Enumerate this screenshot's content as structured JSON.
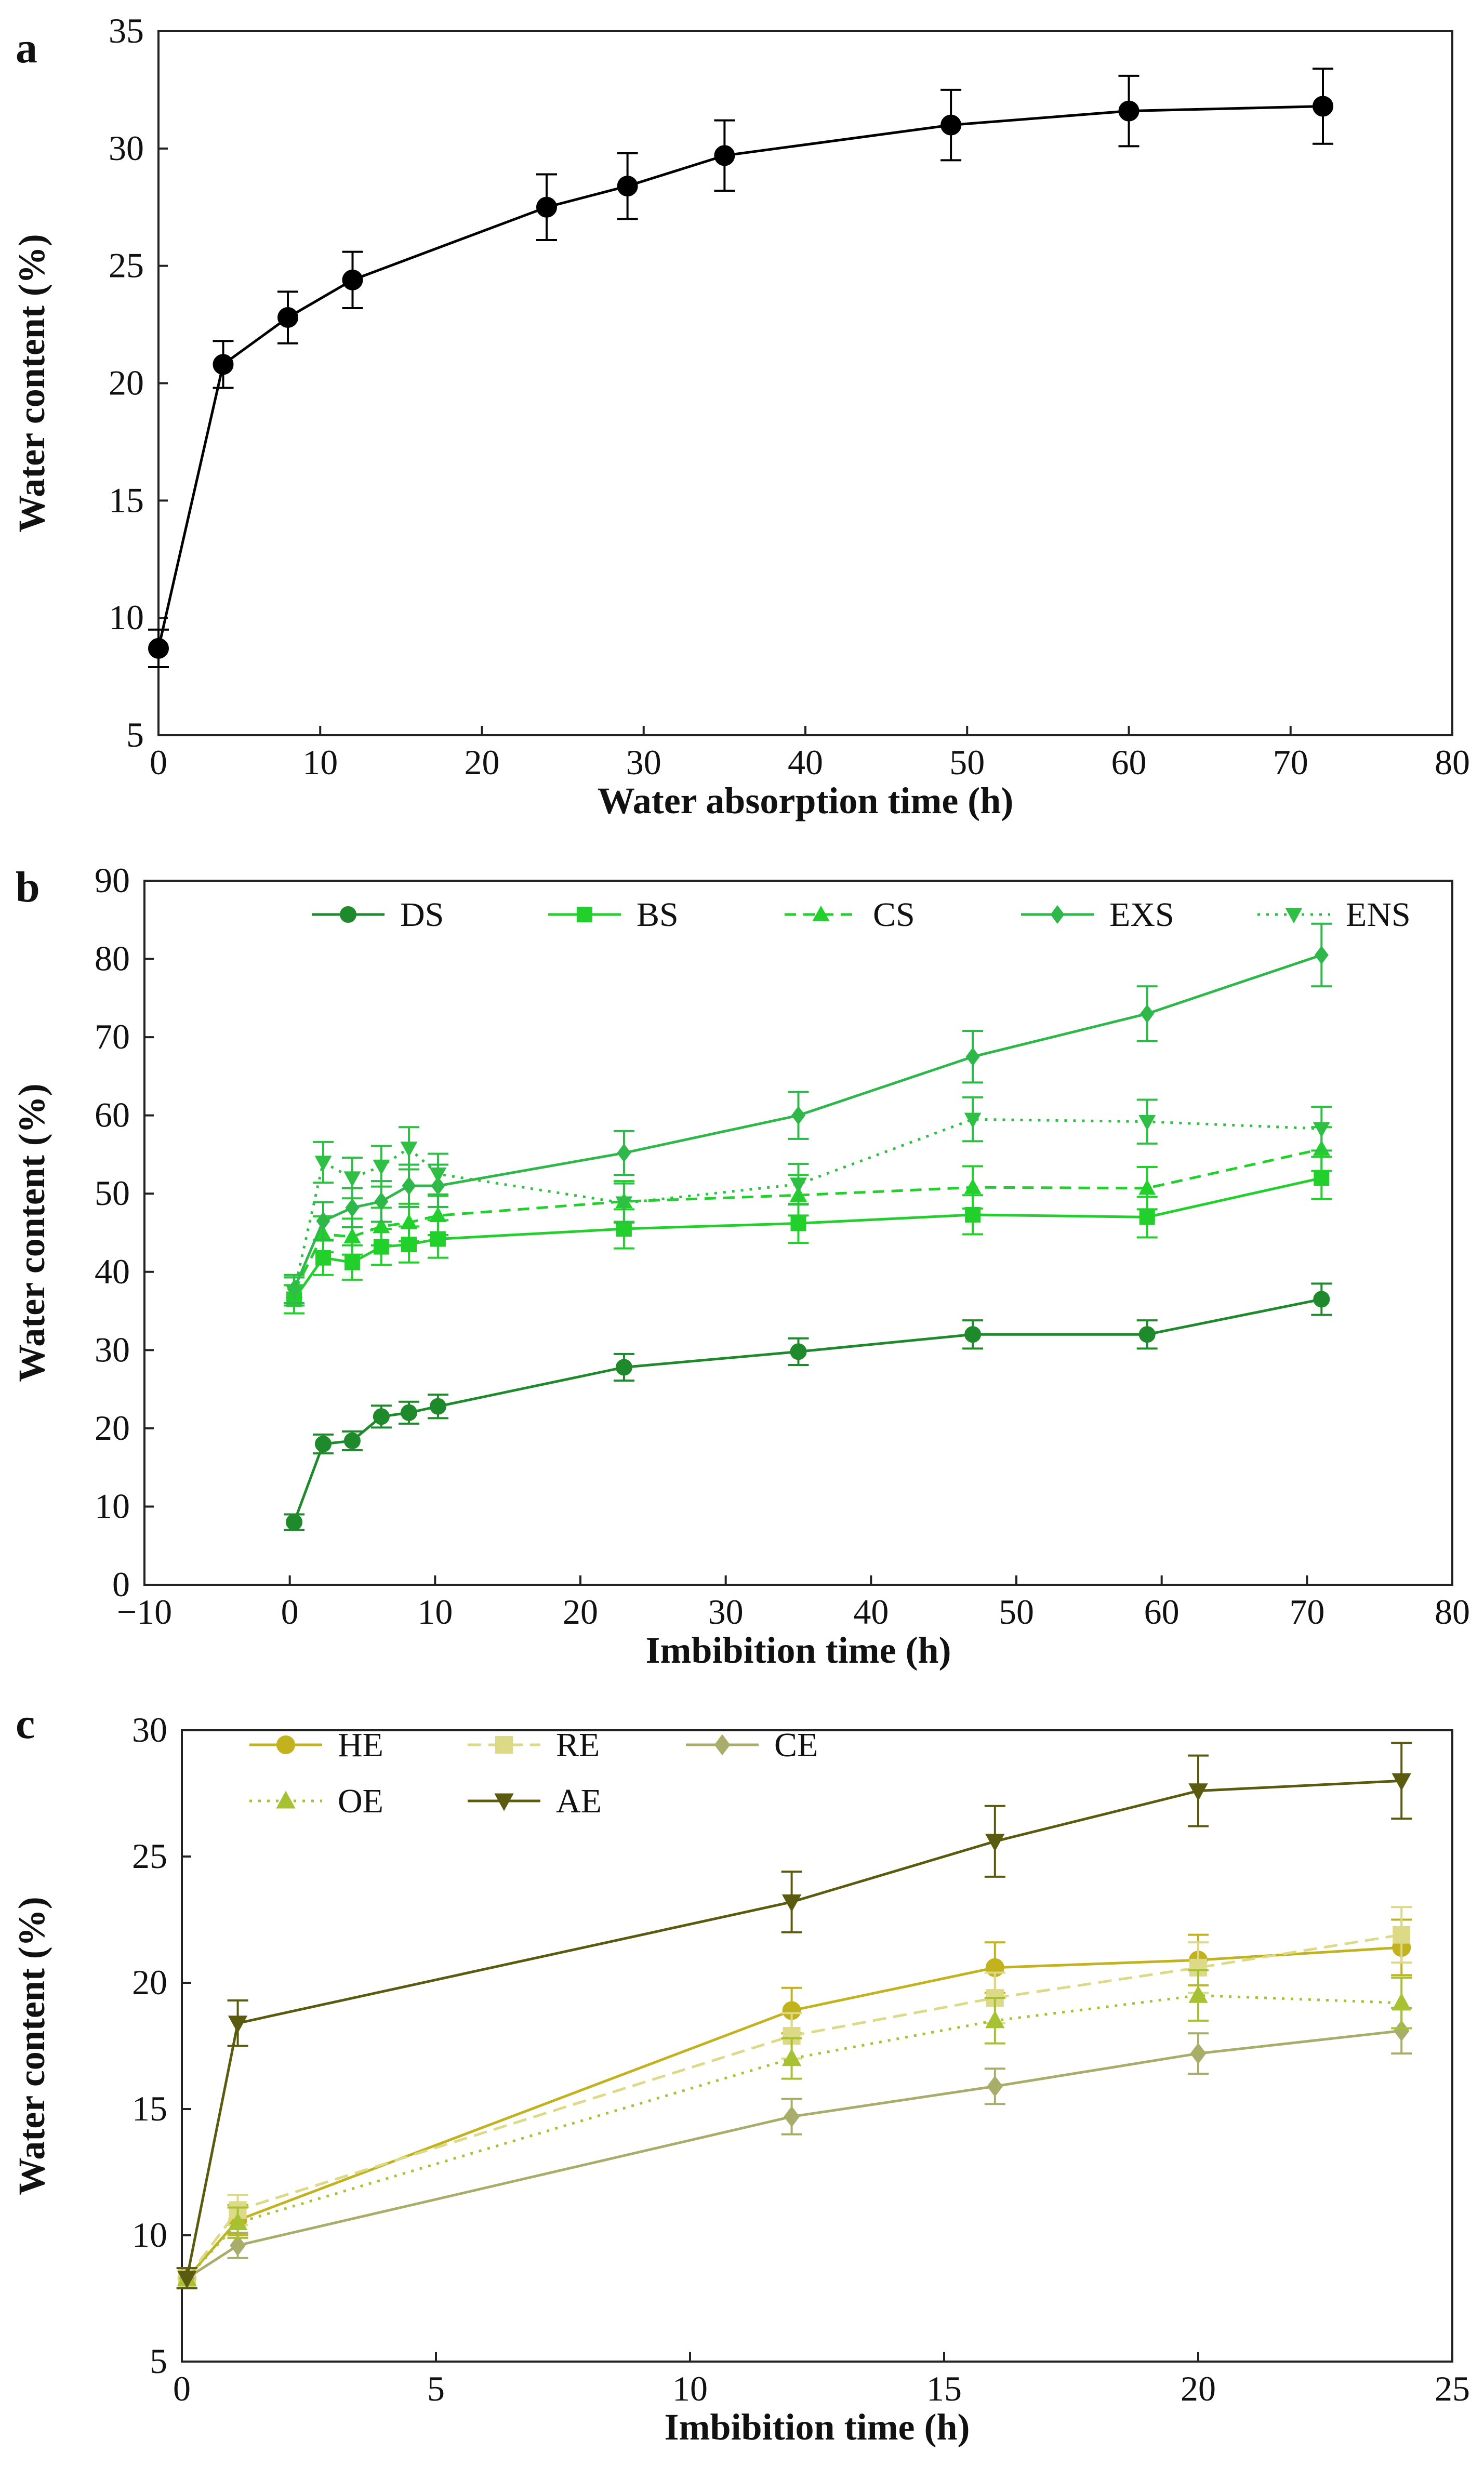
{
  "chart_data": [
    {
      "panel_label": "a",
      "type": "line",
      "xlabel": "Water absorption time (h)",
      "ylabel": "Water content (%)",
      "xlim": [
        0,
        80
      ],
      "ylim": [
        5,
        35
      ],
      "xticks": [
        0,
        10,
        20,
        30,
        40,
        50,
        60,
        70,
        80
      ],
      "yticks": [
        5,
        10,
        15,
        20,
        25,
        30,
        35
      ],
      "legend": null,
      "series": [
        {
          "name": "Water content",
          "color": "#000000",
          "marker": "circle",
          "dash": "",
          "x": [
            0,
            4,
            8,
            12,
            24,
            29,
            35,
            49,
            60,
            72
          ],
          "y": [
            8.7,
            20.8,
            22.8,
            24.4,
            27.5,
            28.4,
            29.7,
            31.0,
            31.6,
            31.8
          ],
          "err": [
            0.8,
            1.0,
            1.1,
            1.2,
            1.4,
            1.4,
            1.5,
            1.5,
            1.5,
            1.6
          ]
        }
      ]
    },
    {
      "panel_label": "b",
      "type": "line",
      "xlabel": "Imbibition time (h)",
      "ylabel": "Water content (%)",
      "xlim": [
        -10,
        80
      ],
      "ylim": [
        0,
        90
      ],
      "xticks": [
        -10,
        0,
        10,
        20,
        30,
        40,
        50,
        60,
        70,
        80
      ],
      "xticklabels": [
        "−10",
        "0",
        "10",
        "20",
        "30",
        "40",
        "50",
        "60",
        "70",
        "80"
      ],
      "yticks": [
        0,
        10,
        20,
        30,
        40,
        50,
        60,
        70,
        80,
        90
      ],
      "legend": "top",
      "series": [
        {
          "name": "DS",
          "color": "#1e8a2c",
          "marker": "circle",
          "dash": "",
          "x": [
            0.3,
            2.3,
            4.3,
            6.3,
            8.2,
            10.2,
            23,
            35,
            47,
            59,
            71
          ],
          "y": [
            8,
            18,
            18.4,
            21.5,
            22,
            22.8,
            27.8,
            29.8,
            32,
            32,
            36.5
          ],
          "err": [
            1.0,
            1.2,
            1.2,
            1.4,
            1.4,
            1.5,
            1.7,
            1.7,
            1.8,
            1.8,
            2.0
          ]
        },
        {
          "name": "BS",
          "color": "#22d02b",
          "marker": "square",
          "dash": "",
          "x": [
            0.3,
            2.3,
            4.3,
            6.3,
            8.2,
            10.2,
            23,
            35,
            47,
            59,
            71
          ],
          "y": [
            36.5,
            41.8,
            41.2,
            43.2,
            43.5,
            44.2,
            45.5,
            46.2,
            47.3,
            47,
            52
          ],
          "err": [
            1.8,
            2.2,
            2.2,
            2.3,
            2.3,
            2.4,
            2.5,
            2.5,
            2.5,
            2.6,
            2.7
          ]
        },
        {
          "name": "CS",
          "color": "#22d02b",
          "marker": "triangle",
          "dash": "22 14",
          "x": [
            0.3,
            2.3,
            4.3,
            6.3,
            8.2,
            10.2,
            23,
            35,
            47,
            59,
            71
          ],
          "y": [
            37.5,
            44.8,
            44.5,
            45.8,
            46.3,
            47.2,
            49,
            49.8,
            50.8,
            50.7,
            55.7
          ],
          "err": [
            1.8,
            2.3,
            2.3,
            2.4,
            2.4,
            2.5,
            2.6,
            2.6,
            2.7,
            2.7,
            2.8
          ]
        },
        {
          "name": "EXS",
          "color": "#2fb84a",
          "marker": "diamond",
          "dash": "",
          "x": [
            0.3,
            2.3,
            4.3,
            6.3,
            8.2,
            10.2,
            23,
            35,
            47,
            59,
            71
          ],
          "y": [
            37.8,
            46.5,
            48.2,
            49,
            51,
            51,
            55.2,
            60,
            67.5,
            73,
            80.5
          ],
          "err": [
            1.8,
            2.4,
            2.5,
            2.6,
            2.7,
            2.7,
            2.8,
            3.0,
            3.3,
            3.5,
            4.0
          ]
        },
        {
          "name": "ENS",
          "color": "#2fbf45",
          "marker": "triangle-down",
          "dash": "5 12",
          "x": [
            0.3,
            2.3,
            4.3,
            6.3,
            8.2,
            10.2,
            23,
            35,
            47,
            59,
            71
          ],
          "y": [
            37.5,
            54,
            52,
            53.5,
            55.8,
            52.5,
            48.8,
            51.2,
            59.5,
            59.2,
            58.3
          ],
          "err": [
            1.8,
            2.6,
            2.6,
            2.6,
            2.7,
            2.6,
            2.5,
            2.6,
            2.8,
            2.8,
            2.8
          ]
        }
      ]
    },
    {
      "panel_label": "c",
      "type": "line",
      "xlabel": "Imbibition time (h)",
      "ylabel": "Water content (%)",
      "xlim": [
        0,
        25
      ],
      "ylim": [
        5,
        30
      ],
      "xticks": [
        0,
        5,
        10,
        15,
        20,
        25
      ],
      "yticks": [
        5,
        10,
        15,
        20,
        25,
        30
      ],
      "legend": "top-left",
      "series": [
        {
          "name": "HE",
          "color": "#c2b21d",
          "marker": "circle",
          "dash": "",
          "x": [
            0.1,
            1.1,
            12,
            16,
            20,
            24
          ],
          "y": [
            8.3,
            10.6,
            18.9,
            20.6,
            20.9,
            21.4
          ],
          "err": [
            0.4,
            0.6,
            0.9,
            1.0,
            1.0,
            1.1
          ]
        },
        {
          "name": "RE",
          "color": "#dcd987",
          "marker": "square",
          "dash": "26 14",
          "x": [
            0.1,
            1.1,
            12,
            16,
            20,
            24
          ],
          "y": [
            8.3,
            11.0,
            17.9,
            19.4,
            20.6,
            21.9
          ],
          "err": [
            0.4,
            0.6,
            0.9,
            1.0,
            1.0,
            1.1
          ]
        },
        {
          "name": "CE",
          "color": "#a8ad6a",
          "marker": "diamond",
          "dash": "",
          "x": [
            0.1,
            1.1,
            12,
            16,
            20,
            24
          ],
          "y": [
            8.3,
            9.6,
            14.7,
            15.9,
            17.2,
            18.1
          ],
          "err": [
            0.4,
            0.5,
            0.7,
            0.7,
            0.8,
            0.9
          ]
        },
        {
          "name": "OE",
          "color": "#a6c233",
          "marker": "triangle",
          "dash": "5 12",
          "x": [
            0.1,
            1.1,
            12,
            16,
            20,
            24
          ],
          "y": [
            8.3,
            10.5,
            17.0,
            18.5,
            19.5,
            19.2
          ],
          "err": [
            0.4,
            0.6,
            0.8,
            0.9,
            1.0,
            1.0
          ]
        },
        {
          "name": "AE",
          "color": "#5b5b0f",
          "marker": "triangle-down",
          "dash": "",
          "x": [
            0.1,
            1.1,
            12,
            16,
            20,
            24
          ],
          "y": [
            8.3,
            18.4,
            23.2,
            25.6,
            27.6,
            28.0
          ],
          "err": [
            0.4,
            0.9,
            1.2,
            1.4,
            1.4,
            1.5
          ]
        }
      ]
    }
  ]
}
